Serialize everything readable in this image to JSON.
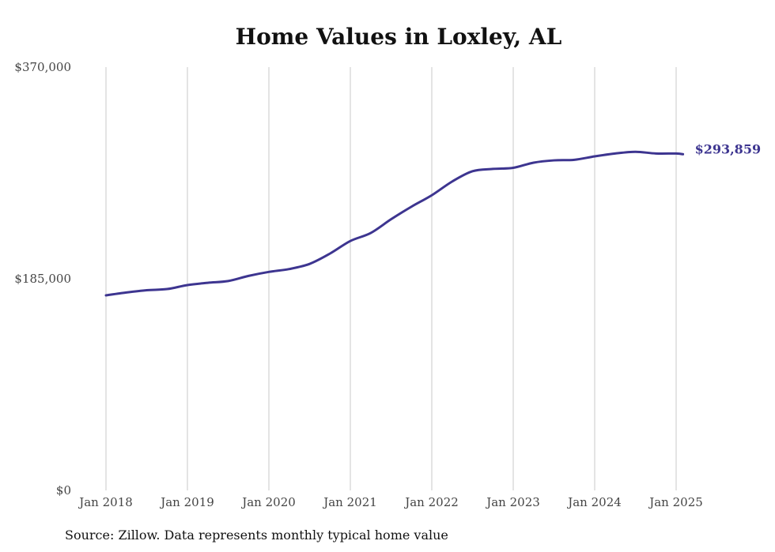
{
  "chart_data": {
    "type": "line",
    "title": "Home Values in Loxley, AL",
    "xlabel": "",
    "ylabel": "",
    "ylim": [
      0,
      370000
    ],
    "y_ticks": [
      "$0",
      "$185,000",
      "$370,000"
    ],
    "y_tick_values": [
      0,
      185000,
      370000
    ],
    "x_ticks": [
      "Jan 2018",
      "Jan 2019",
      "Jan 2020",
      "Jan 2021",
      "Jan 2022",
      "Jan 2023",
      "Jan 2024",
      "Jan 2025"
    ],
    "x_tick_dates": [
      "2018-01",
      "2019-01",
      "2020-01",
      "2021-01",
      "2022-01",
      "2023-01",
      "2024-01",
      "2025-01"
    ],
    "grid": "vertical",
    "line_color": "#3d3590",
    "end_label": "$293,859",
    "series": [
      {
        "x": [
          "2018-01",
          "2018-04",
          "2018-07",
          "2018-10",
          "2019-01",
          "2019-04",
          "2019-07",
          "2019-10",
          "2020-01",
          "2020-04",
          "2020-07",
          "2020-10",
          "2021-01",
          "2021-04",
          "2021-07",
          "2021-10",
          "2022-01",
          "2022-04",
          "2022-07",
          "2022-10",
          "2023-01",
          "2023-04",
          "2023-07",
          "2023-10",
          "2024-01",
          "2024-04",
          "2024-07",
          "2024-10",
          "2025-01",
          "2025-02"
        ],
        "values": [
          170500,
          173000,
          175000,
          176000,
          179500,
          181500,
          183000,
          187500,
          191000,
          193500,
          198000,
          207000,
          218000,
          225000,
          237000,
          248000,
          258000,
          270000,
          279000,
          281000,
          282000,
          286500,
          288500,
          289000,
          292000,
          294500,
          296000,
          294500,
          294500,
          293859
        ]
      }
    ]
  },
  "source_note": "Source: Zillow. Data represents monthly typical home value"
}
